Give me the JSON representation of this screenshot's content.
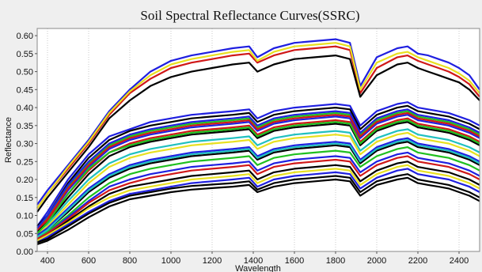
{
  "chart_data": {
    "type": "line",
    "title": "Soil Spectral Reflectance Curves(SSRC)",
    "xlabel": "Wavelength",
    "ylabel": "Reflectance",
    "xlim": [
      350,
      2500
    ],
    "ylim": [
      0,
      0.62
    ],
    "x_ticks": [
      400,
      600,
      800,
      1000,
      1200,
      1400,
      1600,
      1800,
      2000,
      2200,
      2400
    ],
    "y_ticks": [
      0.0,
      0.05,
      0.1,
      0.15,
      0.2,
      0.25,
      0.3,
      0.35,
      0.4,
      0.45,
      0.5,
      0.55,
      0.6
    ],
    "grid": "vertical-dotted",
    "wavelengths": [
      350,
      400,
      500,
      600,
      700,
      800,
      900,
      1000,
      1100,
      1200,
      1300,
      1380,
      1420,
      1500,
      1600,
      1700,
      1800,
      1870,
      1920,
      2000,
      2100,
      2150,
      2200,
      2250,
      2300,
      2350,
      2400,
      2450,
      2500
    ],
    "series": [
      {
        "color": "#1f1fe0",
        "values": [
          0.13,
          0.17,
          0.24,
          0.31,
          0.39,
          0.45,
          0.5,
          0.53,
          0.545,
          0.555,
          0.565,
          0.57,
          0.54,
          0.565,
          0.58,
          0.585,
          0.59,
          0.58,
          0.46,
          0.54,
          0.565,
          0.57,
          0.55,
          0.545,
          0.535,
          0.525,
          0.51,
          0.49,
          0.45
        ]
      },
      {
        "color": "#d01818",
        "values": [
          0.12,
          0.16,
          0.23,
          0.3,
          0.38,
          0.44,
          0.48,
          0.51,
          0.525,
          0.535,
          0.545,
          0.55,
          0.525,
          0.545,
          0.56,
          0.565,
          0.57,
          0.56,
          0.44,
          0.51,
          0.54,
          0.545,
          0.53,
          0.52,
          0.51,
          0.5,
          0.485,
          0.465,
          0.43
        ]
      },
      {
        "color": "#e8e020",
        "values": [
          0.12,
          0.16,
          0.235,
          0.305,
          0.385,
          0.445,
          0.49,
          0.52,
          0.535,
          0.545,
          0.555,
          0.56,
          0.53,
          0.555,
          0.57,
          0.575,
          0.58,
          0.57,
          0.45,
          0.525,
          0.55,
          0.555,
          0.54,
          0.53,
          0.52,
          0.51,
          0.495,
          0.475,
          0.44
        ]
      },
      {
        "color": "#000000",
        "values": [
          0.11,
          0.15,
          0.22,
          0.29,
          0.37,
          0.42,
          0.46,
          0.485,
          0.5,
          0.51,
          0.52,
          0.525,
          0.5,
          0.52,
          0.535,
          0.54,
          0.545,
          0.535,
          0.43,
          0.49,
          0.52,
          0.525,
          0.51,
          0.5,
          0.49,
          0.48,
          0.47,
          0.45,
          0.42
        ]
      },
      {
        "color": "#1f1fe0",
        "values": [
          0.07,
          0.11,
          0.2,
          0.27,
          0.32,
          0.34,
          0.36,
          0.37,
          0.38,
          0.385,
          0.39,
          0.395,
          0.37,
          0.39,
          0.4,
          0.405,
          0.41,
          0.405,
          0.35,
          0.39,
          0.41,
          0.415,
          0.4,
          0.395,
          0.39,
          0.385,
          0.375,
          0.365,
          0.35
        ]
      },
      {
        "color": "#000000",
        "values": [
          0.07,
          0.1,
          0.19,
          0.26,
          0.31,
          0.335,
          0.35,
          0.36,
          0.37,
          0.375,
          0.38,
          0.385,
          0.36,
          0.38,
          0.39,
          0.395,
          0.4,
          0.395,
          0.34,
          0.38,
          0.4,
          0.405,
          0.39,
          0.385,
          0.38,
          0.375,
          0.365,
          0.355,
          0.34
        ]
      },
      {
        "color": "#20c020",
        "values": [
          0.065,
          0.095,
          0.18,
          0.245,
          0.295,
          0.32,
          0.335,
          0.345,
          0.355,
          0.36,
          0.365,
          0.37,
          0.345,
          0.365,
          0.375,
          0.38,
          0.385,
          0.38,
          0.325,
          0.365,
          0.385,
          0.39,
          0.375,
          0.37,
          0.365,
          0.36,
          0.35,
          0.34,
          0.325
        ]
      },
      {
        "color": "#1f1fe0",
        "values": [
          0.06,
          0.09,
          0.17,
          0.235,
          0.285,
          0.31,
          0.325,
          0.335,
          0.345,
          0.35,
          0.355,
          0.36,
          0.335,
          0.355,
          0.365,
          0.37,
          0.375,
          0.37,
          0.315,
          0.355,
          0.375,
          0.38,
          0.365,
          0.36,
          0.355,
          0.35,
          0.34,
          0.33,
          0.315
        ]
      },
      {
        "color": "#d01818",
        "values": [
          0.06,
          0.085,
          0.16,
          0.225,
          0.275,
          0.3,
          0.315,
          0.325,
          0.335,
          0.34,
          0.345,
          0.35,
          0.325,
          0.345,
          0.355,
          0.36,
          0.365,
          0.36,
          0.305,
          0.345,
          0.365,
          0.37,
          0.355,
          0.35,
          0.345,
          0.34,
          0.33,
          0.32,
          0.305
        ]
      },
      {
        "color": "#000000",
        "values": [
          0.055,
          0.08,
          0.15,
          0.215,
          0.265,
          0.29,
          0.305,
          0.315,
          0.325,
          0.33,
          0.335,
          0.34,
          0.315,
          0.335,
          0.345,
          0.35,
          0.355,
          0.35,
          0.295,
          0.335,
          0.355,
          0.36,
          0.345,
          0.34,
          0.335,
          0.33,
          0.32,
          0.31,
          0.295
        ]
      },
      {
        "color": "#20c0c0",
        "values": [
          0.05,
          0.075,
          0.14,
          0.2,
          0.245,
          0.27,
          0.285,
          0.295,
          0.305,
          0.31,
          0.315,
          0.32,
          0.295,
          0.315,
          0.325,
          0.33,
          0.335,
          0.33,
          0.28,
          0.315,
          0.335,
          0.34,
          0.325,
          0.32,
          0.315,
          0.31,
          0.3,
          0.29,
          0.275
        ]
      },
      {
        "color": "#e8e020",
        "values": [
          0.05,
          0.07,
          0.13,
          0.19,
          0.235,
          0.26,
          0.275,
          0.285,
          0.295,
          0.3,
          0.305,
          0.31,
          0.285,
          0.305,
          0.315,
          0.32,
          0.325,
          0.32,
          0.27,
          0.305,
          0.325,
          0.33,
          0.315,
          0.31,
          0.305,
          0.3,
          0.29,
          0.28,
          0.265
        ]
      },
      {
        "color": "#1f1fe0",
        "values": [
          0.045,
          0.065,
          0.12,
          0.175,
          0.215,
          0.24,
          0.255,
          0.265,
          0.275,
          0.28,
          0.285,
          0.29,
          0.265,
          0.285,
          0.295,
          0.3,
          0.305,
          0.3,
          0.255,
          0.29,
          0.31,
          0.315,
          0.3,
          0.295,
          0.29,
          0.285,
          0.275,
          0.265,
          0.25
        ]
      },
      {
        "color": "#000000",
        "values": [
          0.04,
          0.06,
          0.11,
          0.165,
          0.205,
          0.23,
          0.245,
          0.255,
          0.265,
          0.27,
          0.275,
          0.28,
          0.255,
          0.275,
          0.285,
          0.29,
          0.295,
          0.29,
          0.245,
          0.28,
          0.3,
          0.305,
          0.29,
          0.285,
          0.28,
          0.275,
          0.265,
          0.255,
          0.24
        ]
      },
      {
        "color": "#20c020",
        "values": [
          0.04,
          0.055,
          0.1,
          0.15,
          0.19,
          0.215,
          0.23,
          0.24,
          0.25,
          0.255,
          0.26,
          0.265,
          0.24,
          0.26,
          0.27,
          0.275,
          0.28,
          0.275,
          0.235,
          0.265,
          0.285,
          0.29,
          0.275,
          0.27,
          0.265,
          0.26,
          0.25,
          0.24,
          0.225
        ]
      },
      {
        "color": "#1f1fe0",
        "values": [
          0.035,
          0.05,
          0.095,
          0.14,
          0.18,
          0.2,
          0.215,
          0.225,
          0.235,
          0.24,
          0.245,
          0.25,
          0.225,
          0.245,
          0.255,
          0.26,
          0.265,
          0.26,
          0.22,
          0.25,
          0.27,
          0.275,
          0.26,
          0.255,
          0.25,
          0.245,
          0.235,
          0.225,
          0.21
        ]
      },
      {
        "color": "#d01818",
        "values": [
          0.035,
          0.05,
          0.09,
          0.135,
          0.17,
          0.19,
          0.205,
          0.215,
          0.225,
          0.23,
          0.235,
          0.24,
          0.215,
          0.235,
          0.245,
          0.25,
          0.255,
          0.25,
          0.21,
          0.24,
          0.26,
          0.265,
          0.25,
          0.245,
          0.24,
          0.235,
          0.225,
          0.215,
          0.2
        ]
      },
      {
        "color": "#000000",
        "values": [
          0.03,
          0.045,
          0.085,
          0.125,
          0.16,
          0.18,
          0.19,
          0.2,
          0.21,
          0.215,
          0.22,
          0.225,
          0.2,
          0.22,
          0.23,
          0.235,
          0.24,
          0.235,
          0.195,
          0.225,
          0.245,
          0.25,
          0.235,
          0.23,
          0.225,
          0.22,
          0.21,
          0.2,
          0.185
        ]
      },
      {
        "color": "#e8e020",
        "values": [
          0.03,
          0.045,
          0.08,
          0.12,
          0.15,
          0.17,
          0.18,
          0.19,
          0.2,
          0.205,
          0.21,
          0.215,
          0.19,
          0.21,
          0.22,
          0.225,
          0.23,
          0.225,
          0.185,
          0.215,
          0.235,
          0.24,
          0.225,
          0.22,
          0.215,
          0.21,
          0.2,
          0.19,
          0.175
        ]
      },
      {
        "color": "#1f1fe0",
        "values": [
          0.025,
          0.04,
          0.075,
          0.11,
          0.14,
          0.16,
          0.17,
          0.18,
          0.19,
          0.195,
          0.2,
          0.205,
          0.18,
          0.2,
          0.21,
          0.215,
          0.22,
          0.215,
          0.175,
          0.205,
          0.225,
          0.23,
          0.215,
          0.21,
          0.205,
          0.2,
          0.19,
          0.18,
          0.165
        ]
      },
      {
        "color": "#000000",
        "values": [
          0.025,
          0.035,
          0.07,
          0.105,
          0.135,
          0.155,
          0.165,
          0.175,
          0.182,
          0.186,
          0.19,
          0.195,
          0.172,
          0.19,
          0.2,
          0.205,
          0.21,
          0.205,
          0.165,
          0.195,
          0.21,
          0.215,
          0.2,
          0.195,
          0.19,
          0.185,
          0.175,
          0.165,
          0.15
        ]
      },
      {
        "color": "#20c020",
        "values": [
          0.05,
          0.08,
          0.16,
          0.23,
          0.275,
          0.295,
          0.31,
          0.32,
          0.33,
          0.335,
          0.34,
          0.345,
          0.32,
          0.34,
          0.35,
          0.355,
          0.36,
          0.355,
          0.3,
          0.34,
          0.36,
          0.365,
          0.35,
          0.345,
          0.34,
          0.335,
          0.325,
          0.315,
          0.3
        ]
      },
      {
        "color": "#d01818",
        "values": [
          0.06,
          0.09,
          0.175,
          0.24,
          0.29,
          0.315,
          0.33,
          0.34,
          0.35,
          0.355,
          0.36,
          0.365,
          0.34,
          0.36,
          0.37,
          0.375,
          0.38,
          0.375,
          0.32,
          0.36,
          0.38,
          0.385,
          0.37,
          0.365,
          0.36,
          0.355,
          0.345,
          0.335,
          0.32
        ]
      },
      {
        "color": "#20c0c0",
        "values": [
          0.04,
          0.06,
          0.115,
          0.17,
          0.21,
          0.235,
          0.25,
          0.26,
          0.27,
          0.275,
          0.28,
          0.285,
          0.26,
          0.28,
          0.29,
          0.295,
          0.3,
          0.295,
          0.25,
          0.285,
          0.305,
          0.31,
          0.295,
          0.29,
          0.285,
          0.28,
          0.27,
          0.26,
          0.245
        ]
      },
      {
        "color": "#1f1fe0",
        "values": [
          0.065,
          0.1,
          0.185,
          0.25,
          0.3,
          0.325,
          0.34,
          0.35,
          0.36,
          0.365,
          0.37,
          0.375,
          0.35,
          0.37,
          0.38,
          0.385,
          0.39,
          0.385,
          0.33,
          0.37,
          0.39,
          0.395,
          0.38,
          0.375,
          0.37,
          0.365,
          0.355,
          0.345,
          0.33
        ]
      },
      {
        "color": "#000000",
        "values": [
          0.02,
          0.03,
          0.06,
          0.095,
          0.125,
          0.145,
          0.155,
          0.165,
          0.172,
          0.176,
          0.18,
          0.185,
          0.165,
          0.18,
          0.19,
          0.195,
          0.2,
          0.195,
          0.155,
          0.185,
          0.2,
          0.205,
          0.19,
          0.185,
          0.18,
          0.175,
          0.165,
          0.155,
          0.14
        ]
      }
    ]
  }
}
